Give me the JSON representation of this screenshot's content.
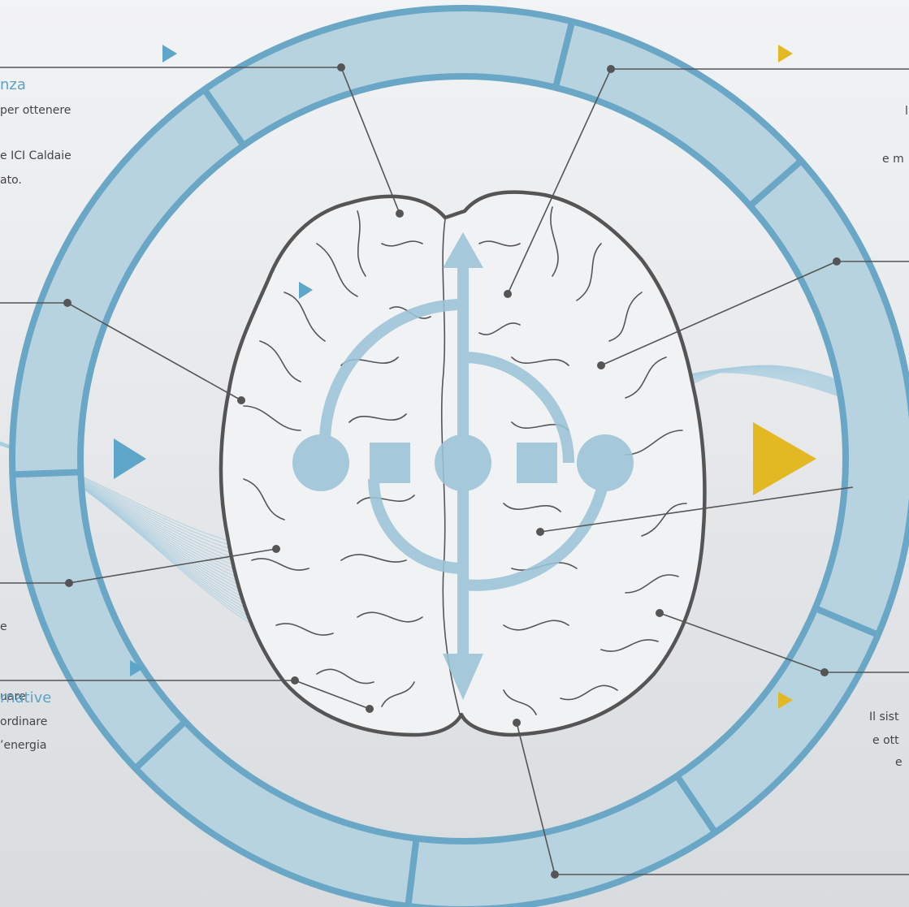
{
  "callouts": {
    "top_left": {
      "heading": "nza",
      "lines": [
        "per ottenere",
        "e ICI Caldaie",
        "ato."
      ]
    },
    "top_right": {
      "lines": [
        "l",
        "e m"
      ]
    },
    "mid_left": {
      "lines": [
        "e",
        "uare"
      ]
    },
    "mid_right": {
      "lines": [
        "Il sist",
        "e ott",
        "e"
      ]
    },
    "bottom_left": {
      "heading": "rnative",
      "lines": [
        "ordinare",
        "’energia"
      ]
    }
  }
}
